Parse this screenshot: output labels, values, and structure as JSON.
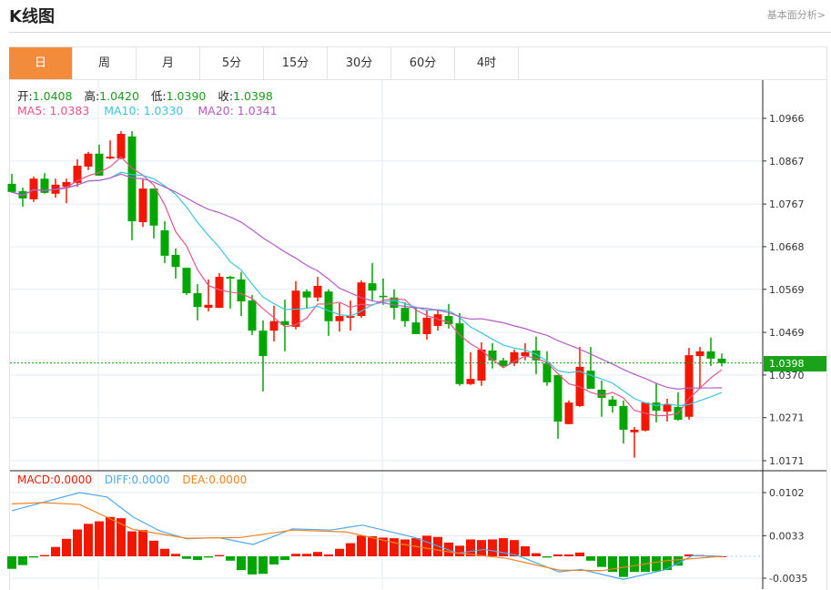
{
  "header": {
    "title": "K线图",
    "link": "基本面分析>"
  },
  "tabs": [
    {
      "label": "日",
      "active": true
    },
    {
      "label": "周"
    },
    {
      "label": "月"
    },
    {
      "label": "5分"
    },
    {
      "label": "15分"
    },
    {
      "label": "30分"
    },
    {
      "label": "60分"
    },
    {
      "label": "4时"
    }
  ],
  "info": {
    "open_label": "开:",
    "open": "1.0408",
    "high_label": "高:",
    "high": "1.0420",
    "low_label": "低:",
    "low": "1.0390",
    "close_label": "收:",
    "close": "1.0398",
    "ma5": "MA5: 1.0383",
    "ma10": "MA10: 1.0330",
    "ma20": "MA20: 1.0341"
  },
  "macd_info": {
    "macd": "MACD:0.0000",
    "diff": "DIFF:0.0000",
    "dea": "DEA:0.0000"
  },
  "current_price": "1.0398",
  "colors": {
    "up": "#f21800",
    "down": "#00a600",
    "ma5": "#e8538a",
    "ma10": "#3cc4dc",
    "ma20": "#b35bc8",
    "diff": "#4da9f0",
    "dea": "#f5821f",
    "accent": "#f28c3c"
  },
  "chart_data": [
    {
      "type": "candlestick",
      "title": "K线图",
      "ylim": [
        1.0171,
        1.0966
      ],
      "yticks": [
        "1.0966",
        "1.0867",
        "1.0767",
        "1.0668",
        "1.0569",
        "1.0469",
        "1.0370",
        "1.0271",
        "1.0171"
      ],
      "ma_periods": [
        5,
        10,
        20
      ],
      "ohlc": [
        [
          1.0814,
          1.0837,
          1.0793,
          1.0795
        ],
        [
          1.0797,
          1.0805,
          1.0761,
          1.078
        ],
        [
          1.0778,
          1.0831,
          1.0772,
          1.0826
        ],
        [
          1.0826,
          1.0839,
          1.0791,
          1.0793
        ],
        [
          1.0791,
          1.0826,
          1.0782,
          1.0812
        ],
        [
          1.0807,
          1.0826,
          1.0769,
          1.0818
        ],
        [
          1.0816,
          1.0871,
          1.0807,
          1.0856
        ],
        [
          1.0854,
          1.0888,
          1.0846,
          1.0884
        ],
        [
          1.0884,
          1.0905,
          1.0833,
          1.0833
        ],
        [
          1.0873,
          1.0915,
          1.0871,
          1.0877
        ],
        [
          1.0873,
          1.0936,
          1.0871,
          1.093
        ],
        [
          1.0924,
          1.0936,
          1.0683,
          1.0727
        ],
        [
          1.0725,
          1.0824,
          1.0714,
          1.0803
        ],
        [
          1.0803,
          1.0803,
          1.0687,
          1.0717
        ],
        [
          1.0706,
          1.0727,
          1.063,
          1.0647
        ],
        [
          1.0649,
          1.0664,
          1.0594,
          1.0621
        ],
        [
          1.0619,
          1.0619,
          1.0556,
          1.056
        ],
        [
          1.056,
          1.0581,
          1.0497,
          1.0528
        ],
        [
          1.0526,
          1.0592,
          1.0518,
          1.0533
        ],
        [
          1.0526,
          1.0607,
          1.0526,
          1.0598
        ],
        [
          1.0598,
          1.06,
          1.0524,
          1.0594
        ],
        [
          1.0592,
          1.0609,
          1.0507,
          1.0541
        ],
        [
          1.0543,
          1.0556,
          1.0463,
          1.0473
        ],
        [
          1.0473,
          1.0497,
          1.0332,
          1.0414
        ],
        [
          1.0473,
          1.0531,
          1.0448,
          1.0495
        ],
        [
          1.0495,
          1.0545,
          1.0425,
          1.0486
        ],
        [
          1.0482,
          1.0588,
          1.0476,
          1.0566
        ],
        [
          1.0564,
          1.0569,
          1.0526,
          1.055
        ],
        [
          1.055,
          1.0598,
          1.0541,
          1.0577
        ],
        [
          1.0564,
          1.0569,
          1.0461,
          1.0495
        ],
        [
          1.0495,
          1.0537,
          1.0471,
          1.0507
        ],
        [
          1.0503,
          1.0543,
          1.0473,
          1.0507
        ],
        [
          1.0507,
          1.059,
          1.0503,
          1.0585
        ],
        [
          1.0583,
          1.063,
          1.0543,
          1.0566
        ],
        [
          1.0554,
          1.0594,
          1.0533,
          1.0552
        ],
        [
          1.055,
          1.0569,
          1.0499,
          1.0526
        ],
        [
          1.0526,
          1.0539,
          1.0482,
          1.0495
        ],
        [
          1.0492,
          1.0528,
          1.0465,
          1.0465
        ],
        [
          1.0465,
          1.0522,
          1.0452,
          1.0503
        ],
        [
          1.0484,
          1.0522,
          1.0473,
          1.0511
        ],
        [
          1.0507,
          1.0535,
          1.0478,
          1.0488
        ],
        [
          1.049,
          1.0514,
          1.0345,
          1.0349
        ],
        [
          1.0349,
          1.0423,
          1.0347,
          1.0361
        ],
        [
          1.0357,
          1.0446,
          1.0345,
          1.0429
        ],
        [
          1.0427,
          1.0444,
          1.0385,
          1.0404
        ],
        [
          1.0404,
          1.041,
          1.0387,
          1.0391
        ],
        [
          1.0397,
          1.0429,
          1.0391,
          1.0423
        ],
        [
          1.0414,
          1.0444,
          1.0404,
          1.0423
        ],
        [
          1.0427,
          1.0459,
          1.0372,
          1.0404
        ],
        [
          1.0397,
          1.0425,
          1.0345,
          1.0353
        ],
        [
          1.037,
          1.037,
          1.0222,
          1.0262
        ],
        [
          1.0256,
          1.0311,
          1.0256,
          1.0306
        ],
        [
          1.0298,
          1.0435,
          1.0296,
          1.0389
        ],
        [
          1.038,
          1.0435,
          1.0338,
          1.0338
        ],
        [
          1.0336,
          1.0357,
          1.0273,
          1.0317
        ],
        [
          1.0313,
          1.0321,
          1.0283,
          1.0298
        ],
        [
          1.0298,
          1.0311,
          1.0211,
          1.0243
        ],
        [
          1.0237,
          1.0249,
          1.0178,
          1.0243
        ],
        [
          1.0241,
          1.0306,
          1.0239,
          1.0306
        ],
        [
          1.0306,
          1.0351,
          1.026,
          1.0287
        ],
        [
          1.0285,
          1.0315,
          1.0262,
          1.0302
        ],
        [
          1.0296,
          1.033,
          1.0264,
          1.0266
        ],
        [
          1.0273,
          1.0433,
          1.0266,
          1.0416
        ],
        [
          1.0414,
          1.0435,
          1.034,
          1.0425
        ],
        [
          1.0425,
          1.0457,
          1.0391,
          1.0408
        ],
        [
          1.0408,
          1.042,
          1.039,
          1.0398
        ]
      ]
    },
    {
      "type": "bar",
      "title": "MACD",
      "ylim": [
        -0.0035,
        0.0102
      ],
      "yticks": [
        "0.0102",
        "0.0033",
        "-0.0035"
      ],
      "histogram": [
        -0.002,
        -0.0014,
        -0.0002,
        0.0002,
        0.0015,
        0.0028,
        0.0043,
        0.0052,
        0.0056,
        0.0063,
        0.0061,
        0.004,
        0.0042,
        0.0025,
        0.0012,
        0.0004,
        -0.0004,
        -0.0006,
        -0.0002,
        0.0002,
        -0.0007,
        -0.0022,
        -0.0029,
        -0.0028,
        -0.0013,
        -0.0006,
        0.0004,
        0.0004,
        0.0007,
        0.0003,
        0.0012,
        0.0021,
        0.0033,
        0.0032,
        0.003,
        0.0029,
        0.0027,
        0.0029,
        0.0033,
        0.0031,
        0.0022,
        0.0017,
        0.0027,
        0.0026,
        0.0027,
        0.0029,
        0.0026,
        0.0016,
        0.0005,
        -0.0002,
        0.0003,
        0.0003,
        0.0006,
        -0.0007,
        -0.0017,
        -0.0025,
        -0.0033,
        -0.0025,
        -0.0025,
        -0.0024,
        -0.0022,
        -0.0015,
        0.0003,
        0.0002,
        0.0001,
        0.0
      ],
      "diff": [
        [
          0,
          0.0073
        ],
        [
          6.2,
          0.0102
        ],
        [
          8.7,
          0.0095
        ],
        [
          11.1,
          0.0063
        ],
        [
          13.5,
          0.0041
        ],
        [
          16,
          0.0028
        ],
        [
          18.9,
          0.003
        ],
        [
          22.1,
          0.0019
        ],
        [
          25.7,
          0.0044
        ],
        [
          29.2,
          0.0042
        ],
        [
          32.1,
          0.005
        ],
        [
          36.9,
          0.003
        ],
        [
          40.8,
          0.0005
        ],
        [
          43.3,
          0.0011
        ],
        [
          46.2,
          0.0002
        ],
        [
          50.1,
          -0.0025
        ],
        [
          52.1,
          -0.0021
        ],
        [
          56,
          -0.0037
        ],
        [
          59.9,
          -0.0021
        ],
        [
          62.3,
          0.0001
        ],
        [
          65,
          0
        ]
      ],
      "dea": [
        [
          0,
          0.0084
        ],
        [
          2.8,
          0.0086
        ],
        [
          6.2,
          0.0083
        ],
        [
          11.1,
          0.0043
        ],
        [
          16,
          0.0029
        ],
        [
          20.9,
          0.003
        ],
        [
          25.7,
          0.0042
        ],
        [
          30.6,
          0.0039
        ],
        [
          35.5,
          0.002
        ],
        [
          40.4,
          0.0006
        ],
        [
          45.2,
          -0.0003
        ],
        [
          50.1,
          -0.0022
        ],
        [
          54,
          -0.0023
        ],
        [
          59.9,
          -0.0007
        ],
        [
          65,
          0
        ]
      ]
    }
  ]
}
